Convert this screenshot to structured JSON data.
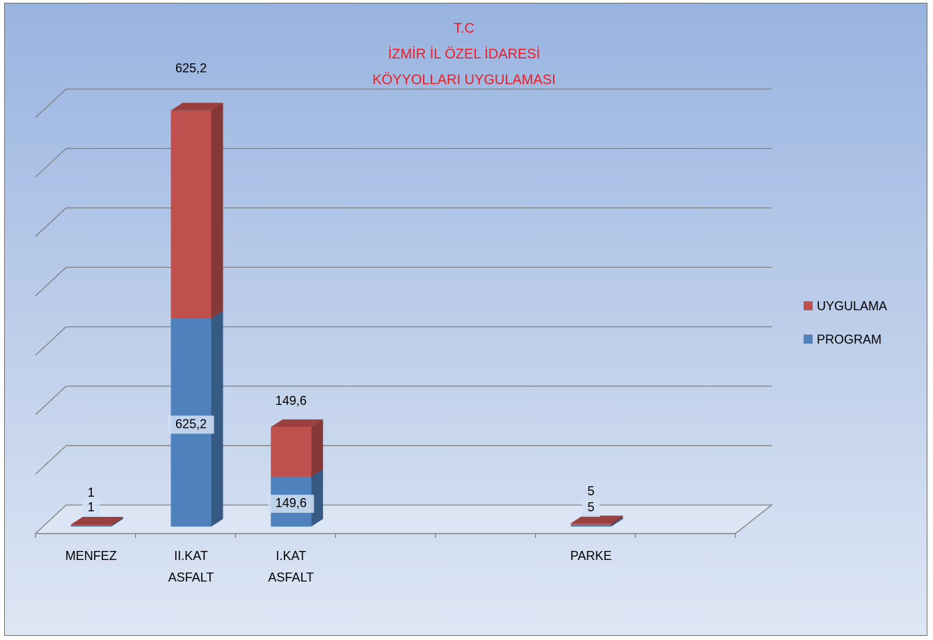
{
  "chart_data": {
    "type": "bar",
    "stacked": true,
    "three_d": true,
    "title": [
      "T.C",
      "İZMİR İL ÖZEL İDARESİ",
      "KÖYYOLLARI UYGULAMASI"
    ],
    "title_color": "#ee1c25",
    "categories": [
      {
        "label": [
          "MENFEZ"
        ]
      },
      {
        "label": [
          "II.KAT",
          "ASFALT"
        ]
      },
      {
        "label": [
          "I.KAT",
          "ASFALT"
        ]
      },
      {
        "label": []
      },
      {
        "label": []
      },
      {
        "label": [
          "PARKE"
        ]
      },
      {
        "label": []
      }
    ],
    "series": [
      {
        "name": "PROGRAM",
        "color": "#4f81bd",
        "values": [
          1,
          625.2,
          149.6,
          0,
          0,
          5,
          0
        ],
        "data_labels": [
          "1",
          "625,2",
          "149,6",
          "",
          "",
          "5",
          ""
        ]
      },
      {
        "name": "UYGULAMA",
        "color": "#c0504d",
        "values": [
          1,
          625.2,
          149.6,
          0,
          0,
          5,
          0
        ],
        "data_labels": [
          "1",
          "625,2",
          "149,6",
          "",
          "",
          "5",
          ""
        ]
      }
    ],
    "ylim": [
      0,
      1250
    ],
    "grid": true,
    "axis_labels_shown": false,
    "legend_position": "right"
  }
}
